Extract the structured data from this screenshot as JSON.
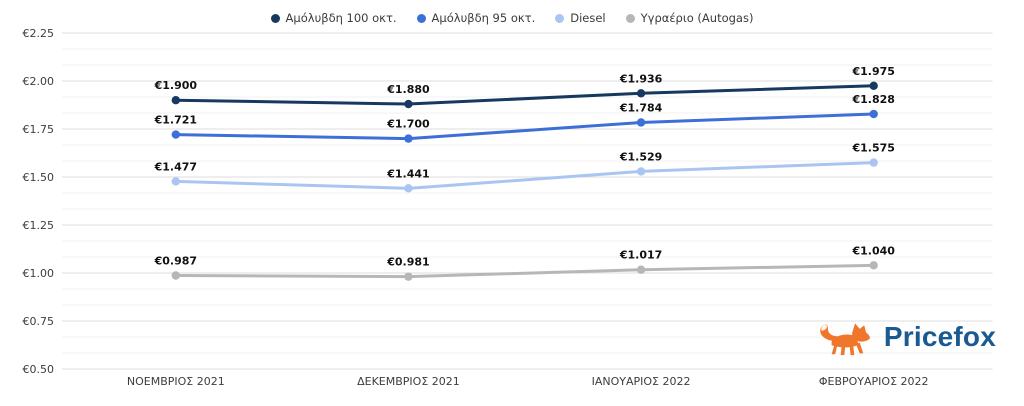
{
  "legend": {
    "items": [
      {
        "label": "Αμόλυβδη 100 οκτ.",
        "color": "#17395f"
      },
      {
        "label": "Αμόλυβδη 95 οκτ.",
        "color": "#3d6fd8"
      },
      {
        "label": "Diesel",
        "color": "#a9c5f2"
      },
      {
        "label": "Υγραέριο (Autogas)",
        "color": "#b7b7b7"
      }
    ]
  },
  "chart_data": {
    "type": "line",
    "categories": [
      "ΝΟΕΜΒΡΙΟΣ 2021",
      "ΔΕΚΕΜΒΡΙΟΣ 2021",
      "ΙΑΝΟΥΑΡΙΟΣ 2022",
      "ΦΕΒΡΟΥΑΡΙΟΣ 2022"
    ],
    "series": [
      {
        "name": "Αμόλυβδη 100 οκτ.",
        "color": "#17395f",
        "values": [
          1.9,
          1.88,
          1.936,
          1.975
        ],
        "labels": [
          "€1.900",
          "€1.880",
          "€1.936",
          "€1.975"
        ]
      },
      {
        "name": "Αμόλυβδη 95 οκτ.",
        "color": "#3d6fd8",
        "values": [
          1.721,
          1.7,
          1.784,
          1.828
        ],
        "labels": [
          "€1.721",
          "€1.700",
          "€1.784",
          "€1.828"
        ]
      },
      {
        "name": "Diesel",
        "color": "#a9c5f2",
        "values": [
          1.477,
          1.441,
          1.529,
          1.575
        ],
        "labels": [
          "€1.477",
          "€1.441",
          "€1.529",
          "€1.575"
        ]
      },
      {
        "name": "Υγραέριο (Autogas)",
        "color": "#b7b7b7",
        "values": [
          0.987,
          0.981,
          1.017,
          1.04
        ],
        "labels": [
          "€0.987",
          "€0.981",
          "€1.017",
          "€1.040"
        ]
      }
    ],
    "title": "",
    "xlabel": "",
    "ylabel": "",
    "ylim": [
      0.5,
      2.25
    ],
    "y_ticks": [
      {
        "value": 2.25,
        "label": "€2.25"
      },
      {
        "value": 2.0,
        "label": "€2.00"
      },
      {
        "value": 1.75,
        "label": "€1.75"
      },
      {
        "value": 1.5,
        "label": "€1.50"
      },
      {
        "value": 1.25,
        "label": "€1.25"
      },
      {
        "value": 1.0,
        "label": "€1.00"
      },
      {
        "value": 0.75,
        "label": "€0.75"
      },
      {
        "value": 0.5,
        "label": "€0.50"
      }
    ],
    "grid": {
      "major_step": 0.25,
      "minor_divisions": 3,
      "major_color": "#dcdcdc",
      "minor_color": "#f2f2f2"
    },
    "legend_position": "top-center",
    "data_label_color": "#111111",
    "tick_label_color": "#3d3d3d"
  },
  "logo": {
    "text": "Pricefox",
    "icon_color": "#f0762b",
    "text_color": "#1a5a92"
  }
}
